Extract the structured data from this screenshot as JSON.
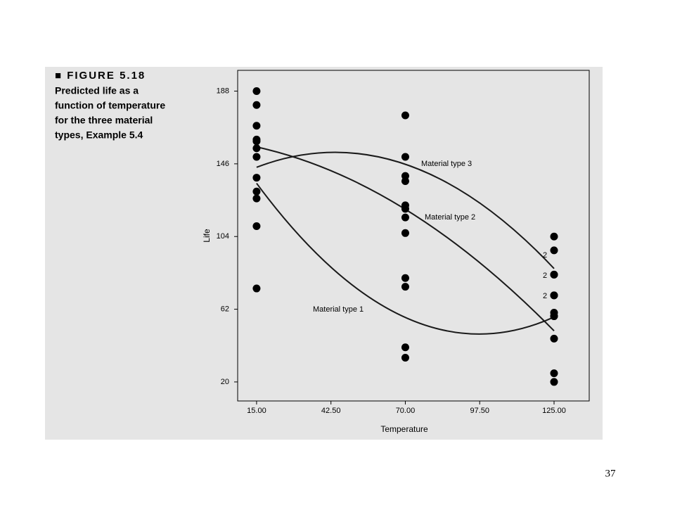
{
  "page_number": "37",
  "figure": {
    "label": "■ FIGURE 5.18",
    "caption_lines": [
      "Predicted life as a",
      "function of temperature",
      "for the three material",
      "types, Example 5.4"
    ]
  },
  "chart_data": {
    "type": "scatter",
    "xlabel": "Temperature",
    "ylabel": "Life",
    "xlim": [
      8,
      138
    ],
    "ylim": [
      9,
      200
    ],
    "xticks": [
      {
        "value": 15,
        "label": "15.00"
      },
      {
        "value": 42.5,
        "label": "42.50"
      },
      {
        "value": 70,
        "label": "70.00"
      },
      {
        "value": 97.5,
        "label": "97.50"
      },
      {
        "value": 125,
        "label": "125.00"
      }
    ],
    "yticks": [
      20,
      62,
      104,
      146,
      188
    ],
    "points": {
      "color": "#000000",
      "x": [
        15,
        15,
        15,
        15,
        15,
        15,
        15,
        15,
        15,
        15,
        15,
        15,
        70,
        70,
        70,
        70,
        70,
        70,
        70,
        70,
        70,
        70,
        70,
        70,
        125,
        125,
        125,
        125,
        125,
        125,
        125,
        125,
        125,
        125,
        125,
        125
      ],
      "y": [
        130,
        155,
        74,
        180,
        150,
        188,
        159,
        126,
        138,
        110,
        168,
        160,
        34,
        40,
        80,
        75,
        136,
        122,
        106,
        115,
        174,
        120,
        150,
        139,
        20,
        70,
        82,
        58,
        25,
        70,
        58,
        45,
        96,
        104,
        82,
        60
      ]
    },
    "series": [
      {
        "name": "Material type 1",
        "color": "#1a1a1a",
        "x": [
          15,
          70,
          125
        ],
        "values": [
          134.75,
          57.25,
          57.5
        ]
      },
      {
        "name": "Material type 2",
        "color": "#1a1a1a",
        "x": [
          15,
          70,
          125
        ],
        "values": [
          155.75,
          119.75,
          49.5
        ]
      },
      {
        "name": "Material type 3",
        "color": "#1a1a1a",
        "x": [
          15,
          70,
          125
        ],
        "values": [
          144,
          145.75,
          85.5
        ]
      }
    ],
    "annotations": [
      "2",
      "2",
      "2"
    ]
  }
}
